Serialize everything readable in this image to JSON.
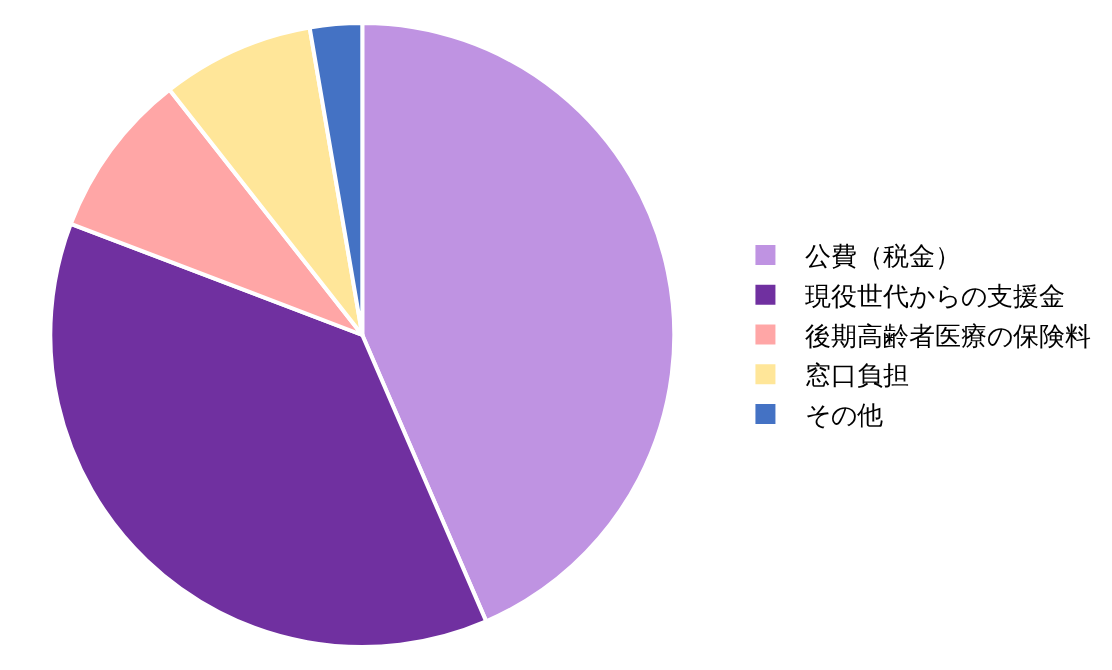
{
  "chart_data": {
    "type": "pie",
    "categories": [
      "公費（税金）",
      "現役世代からの支援金",
      "後期高齢者医療の保険料",
      "窓口負担",
      "その他"
    ],
    "values": [
      43.5,
      37.3,
      8.6,
      7.9,
      2.7
    ],
    "colors": [
      "#bf93e2",
      "#7030a0",
      "#ffa6a6",
      "#ffe699",
      "#4472c4"
    ],
    "legend": "right"
  }
}
